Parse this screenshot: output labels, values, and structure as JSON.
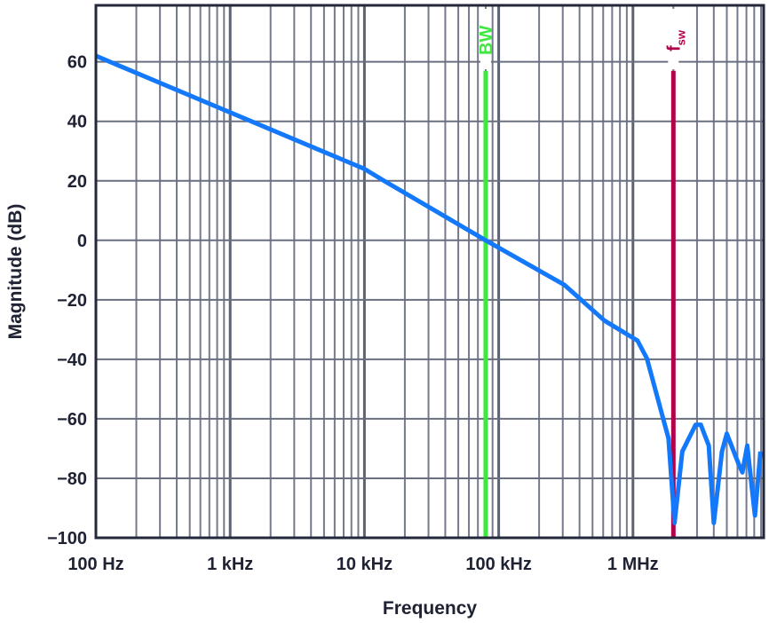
{
  "chart_data": {
    "type": "line",
    "title": "",
    "xlabel": "Frequency",
    "ylabel": "Magnitude (dB)",
    "xscale": "log",
    "xlim": [
      100,
      9400000
    ],
    "ylim": [
      -100,
      79
    ],
    "grid": true,
    "x_ticks": [
      {
        "value": 100,
        "label": "100 Hz"
      },
      {
        "value": 1000,
        "label": "1 kHz"
      },
      {
        "value": 10000,
        "label": "10 kHz"
      },
      {
        "value": 100000,
        "label": "100 kHz"
      },
      {
        "value": 1000000,
        "label": "1 MHz"
      }
    ],
    "y_ticks": [
      {
        "value": 60,
        "label": "60"
      },
      {
        "value": 40,
        "label": "40"
      },
      {
        "value": 20,
        "label": "20"
      },
      {
        "value": 0,
        "label": "0"
      },
      {
        "value": -20,
        "label": "−20"
      },
      {
        "value": -40,
        "label": "−40"
      },
      {
        "value": -60,
        "label": "−60"
      },
      {
        "value": -80,
        "label": "−80"
      },
      {
        "value": -100,
        "label": "−100"
      }
    ],
    "series": [
      {
        "name": "Magnitude",
        "color": "#1478fa",
        "x": [
          100,
          1000,
          10000,
          14000,
          80000,
          309000,
          614000,
          1080000,
          1270000,
          1840000,
          2040000,
          2330000,
          2930000,
          3200000,
          3670000,
          4000000,
          4600000,
          5000000,
          6100000,
          6530000,
          7100000,
          8100000,
          8900000
        ],
        "y": [
          62,
          43,
          24,
          20,
          0,
          -15,
          -27,
          -33.7,
          -39.7,
          -66.6,
          -95,
          -71,
          -62,
          -62,
          -69,
          -95,
          -71,
          -65,
          -75,
          -78,
          -69,
          -92.5,
          -71
        ]
      }
    ],
    "markers": [
      {
        "label": "BW",
        "x": 80000,
        "color": "#3ee83e",
        "ytop": 57
      },
      {
        "label": "f",
        "sub": "SW",
        "x": 2000000,
        "color": "#b3004b",
        "ytop": 57
      }
    ]
  }
}
